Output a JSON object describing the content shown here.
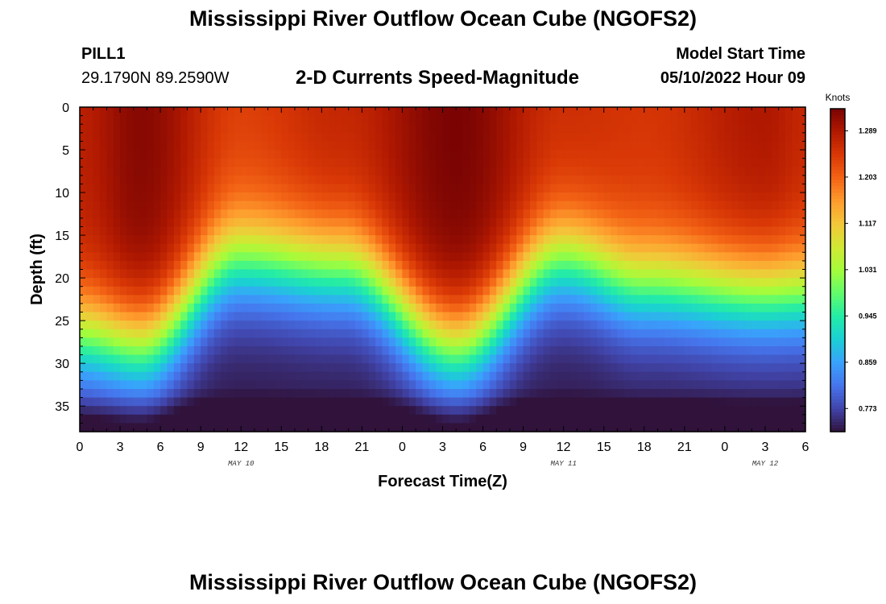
{
  "header": {
    "title": "Mississippi River Outflow Ocean Cube (NGOFS2)",
    "station_name": "PILL1",
    "station_coords": "29.1790N  89.2590W",
    "subtitle": "2-D Currents Speed-Magnitude",
    "model_start_label": "Model Start Time",
    "model_start_value": "05/10/2022 Hour 09"
  },
  "footer": {
    "title_repeat": "Mississippi River Outflow Ocean Cube (NGOFS2)"
  },
  "chart_data": {
    "type": "heatmap",
    "title": "2-D Currents Speed-Magnitude",
    "xlabel": "Forecast Time(Z)",
    "ylabel": "Depth (ft)",
    "x_ticks": [
      "0",
      "3",
      "6",
      "9",
      "12",
      "15",
      "18",
      "21",
      "0",
      "3",
      "6",
      "9",
      "12",
      "15",
      "18",
      "21",
      "0",
      "3",
      "6"
    ],
    "x_range_hours": [
      0,
      54
    ],
    "date_labels": [
      {
        "text": "MAY 10",
        "hour": 12
      },
      {
        "text": "MAY 11",
        "hour": 36
      },
      {
        "text": "MAY 12",
        "hour": 51
      }
    ],
    "y_ticks": [
      "0",
      "5",
      "10",
      "15",
      "20",
      "25",
      "30",
      "35"
    ],
    "y_range_ft": [
      0,
      38
    ],
    "y_inverted": true,
    "colorbar": {
      "unit": "Knots",
      "range": [
        0.73,
        1.33
      ],
      "tick_values": [
        0.773,
        0.859,
        0.945,
        1.031,
        1.117,
        1.203,
        1.289
      ],
      "tick_labels": [
        "0.773",
        "0.859",
        "0.945",
        "1.031",
        "1.117",
        "1.203",
        "1.289"
      ],
      "colormap": [
        "#30123b",
        "#4145ab",
        "#4675ed",
        "#39a2fc",
        "#1bcfd4",
        "#24eca6",
        "#61fc6c",
        "#a4fc3b",
        "#d1e834",
        "#f3c63a",
        "#fe9b2d",
        "#f36315",
        "#d93806",
        "#b11901",
        "#7a0403"
      ]
    },
    "surface_speed_profile": {
      "hours": [
        0,
        4.5,
        12,
        19.5,
        28,
        36,
        42,
        51,
        54
      ],
      "surface_speed_knots": [
        1.28,
        1.32,
        1.24,
        1.27,
        1.33,
        1.26,
        1.25,
        1.29,
        1.27
      ],
      "high_speed_depth_ft": [
        18,
        19,
        9,
        10,
        19,
        9,
        12,
        13,
        13
      ]
    },
    "grid": false
  }
}
